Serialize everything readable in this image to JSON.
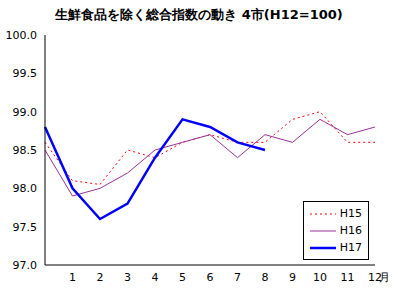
{
  "chart_data": {
    "type": "line",
    "title": "生鮮食品を除く総合指数の動き 4市(H12=100)",
    "x_label": "月",
    "categories": [
      null,
      "1",
      "2",
      "3",
      "4",
      "5",
      "6",
      "7",
      "8",
      "9",
      "10",
      "11",
      "12"
    ],
    "series": [
      {
        "name": "H15",
        "color": "#ff0000",
        "line_style": "dotted",
        "values": [
          98.6,
          98.1,
          98.05,
          98.5,
          98.4,
          98.6,
          98.7,
          98.6,
          98.6,
          98.9,
          99.0,
          98.6,
          98.6
        ]
      },
      {
        "name": "H16",
        "color": "#993399",
        "line_style": "solid",
        "values": [
          98.5,
          97.9,
          98.0,
          98.2,
          98.5,
          98.6,
          98.7,
          98.4,
          98.7,
          98.6,
          98.9,
          98.7,
          98.8
        ]
      },
      {
        "name": "H17",
        "color": "#0000ff",
        "line_style": "solid",
        "values": [
          98.8,
          98.0,
          97.6,
          97.8,
          98.4,
          98.9,
          98.8,
          98.6,
          98.5,
          null,
          null,
          null,
          null
        ]
      }
    ],
    "ylim": [
      97.0,
      100.0
    ],
    "yticks": [
      {
        "value": 97.0,
        "label": "97.0"
      },
      97.5,
      {
        "value": 98.0,
        "label": "98.0"
      },
      98.5,
      {
        "value": 99.0,
        "label": "99.0"
      },
      99.5,
      {
        "value": 100.0,
        "label": "100.0"
      }
    ],
    "grid": false,
    "legend": "lower right"
  }
}
